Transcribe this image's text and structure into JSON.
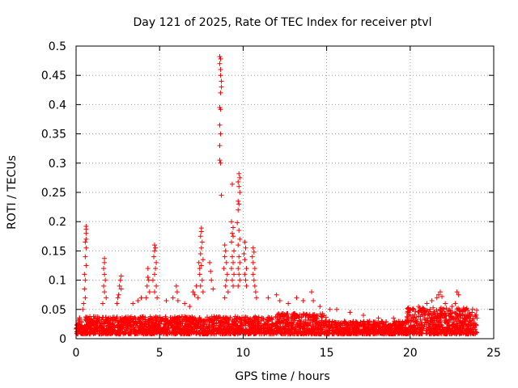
{
  "chart_data": {
    "type": "scatter",
    "title": "Day 121 of 2025, Rate Of TEC Index for receiver ptvl",
    "xlabel": "GPS time / hours",
    "ylabel": "ROTI / TECUs",
    "xlim": [
      0,
      25
    ],
    "ylim": [
      0,
      0.5
    ],
    "x_ticks": [
      "0",
      "5",
      "10",
      "15",
      "20",
      "25"
    ],
    "y_ticks": [
      "0",
      "0.05",
      "0.1",
      "0.15",
      "0.2",
      "0.25",
      "0.3",
      "0.35",
      "0.4",
      "0.45",
      "0.5"
    ],
    "grid": true,
    "marker": "+",
    "series": [
      {
        "name": "ROTI",
        "color": "#ff0000",
        "points": [
          [
            0.6,
            0.192
          ],
          [
            0.6,
            0.187
          ],
          [
            0.6,
            0.18
          ],
          [
            0.6,
            0.17
          ],
          [
            0.55,
            0.165
          ],
          [
            0.6,
            0.155
          ],
          [
            0.55,
            0.14
          ],
          [
            0.6,
            0.125
          ],
          [
            0.5,
            0.11
          ],
          [
            0.55,
            0.1
          ],
          [
            0.5,
            0.085
          ],
          [
            0.55,
            0.07
          ],
          [
            0.45,
            0.06
          ],
          [
            0.4,
            0.05
          ],
          [
            1.7,
            0.137
          ],
          [
            1.7,
            0.13
          ],
          [
            1.65,
            0.12
          ],
          [
            1.7,
            0.11
          ],
          [
            1.75,
            0.1
          ],
          [
            1.65,
            0.09
          ],
          [
            1.7,
            0.08
          ],
          [
            1.8,
            0.07
          ],
          [
            1.6,
            0.06
          ],
          [
            2.7,
            0.107
          ],
          [
            2.65,
            0.1
          ],
          [
            2.6,
            0.09
          ],
          [
            2.7,
            0.085
          ],
          [
            2.55,
            0.075
          ],
          [
            2.5,
            0.07
          ],
          [
            2.45,
            0.06
          ],
          [
            3.4,
            0.06
          ],
          [
            3.7,
            0.065
          ],
          [
            3.9,
            0.07
          ],
          [
            4.3,
            0.12
          ],
          [
            4.3,
            0.105
          ],
          [
            4.35,
            0.1
          ],
          [
            4.25,
            0.09
          ],
          [
            4.4,
            0.08
          ],
          [
            4.2,
            0.07
          ],
          [
            4.7,
            0.16
          ],
          [
            4.75,
            0.155
          ],
          [
            4.7,
            0.15
          ],
          [
            4.65,
            0.14
          ],
          [
            4.8,
            0.13
          ],
          [
            4.75,
            0.12
          ],
          [
            4.7,
            0.11
          ],
          [
            4.6,
            0.1
          ],
          [
            4.8,
            0.09
          ],
          [
            4.7,
            0.08
          ],
          [
            4.85,
            0.07
          ],
          [
            5.4,
            0.065
          ],
          [
            5.8,
            0.07
          ],
          [
            6.0,
            0.09
          ],
          [
            6.05,
            0.08
          ],
          [
            6.1,
            0.065
          ],
          [
            6.5,
            0.06
          ],
          [
            6.8,
            0.055
          ],
          [
            7.0,
            0.08
          ],
          [
            7.1,
            0.075
          ],
          [
            7.2,
            0.09
          ],
          [
            7.35,
            0.13
          ],
          [
            7.4,
            0.12
          ],
          [
            7.5,
            0.189
          ],
          [
            7.5,
            0.183
          ],
          [
            7.45,
            0.175
          ],
          [
            7.55,
            0.165
          ],
          [
            7.5,
            0.155
          ],
          [
            7.45,
            0.145
          ],
          [
            7.6,
            0.135
          ],
          [
            7.5,
            0.125
          ],
          [
            7.4,
            0.11
          ],
          [
            7.55,
            0.1
          ],
          [
            7.45,
            0.09
          ],
          [
            7.6,
            0.08
          ],
          [
            7.3,
            0.07
          ],
          [
            8.0,
            0.13
          ],
          [
            8.05,
            0.115
          ],
          [
            8.1,
            0.1
          ],
          [
            8.2,
            0.085
          ],
          [
            8.6,
            0.482
          ],
          [
            8.65,
            0.478
          ],
          [
            8.6,
            0.47
          ],
          [
            8.65,
            0.46
          ],
          [
            8.65,
            0.45
          ],
          [
            8.7,
            0.44
          ],
          [
            8.7,
            0.43
          ],
          [
            8.65,
            0.42
          ],
          [
            8.6,
            0.395
          ],
          [
            8.65,
            0.392
          ],
          [
            8.6,
            0.365
          ],
          [
            8.65,
            0.35
          ],
          [
            8.6,
            0.33
          ],
          [
            8.6,
            0.305
          ],
          [
            8.65,
            0.3
          ],
          [
            8.7,
            0.245
          ],
          [
            8.9,
            0.16
          ],
          [
            8.95,
            0.15
          ],
          [
            8.9,
            0.14
          ],
          [
            9.0,
            0.13
          ],
          [
            8.85,
            0.12
          ],
          [
            9.05,
            0.11
          ],
          [
            9.0,
            0.1
          ],
          [
            8.95,
            0.09
          ],
          [
            9.1,
            0.08
          ],
          [
            8.9,
            0.07
          ],
          [
            9.35,
            0.264
          ],
          [
            9.3,
            0.2
          ],
          [
            9.4,
            0.19
          ],
          [
            9.35,
            0.18
          ],
          [
            9.4,
            0.175
          ],
          [
            9.3,
            0.165
          ],
          [
            9.45,
            0.15
          ],
          [
            9.35,
            0.14
          ],
          [
            9.4,
            0.13
          ],
          [
            9.3,
            0.12
          ],
          [
            9.45,
            0.11
          ],
          [
            9.35,
            0.1
          ],
          [
            9.4,
            0.09
          ],
          [
            9.75,
            0.282
          ],
          [
            9.8,
            0.275
          ],
          [
            9.7,
            0.268
          ],
          [
            9.75,
            0.26
          ],
          [
            9.8,
            0.25
          ],
          [
            9.7,
            0.235
          ],
          [
            9.75,
            0.23
          ],
          [
            9.7,
            0.22
          ],
          [
            9.65,
            0.198
          ],
          [
            9.75,
            0.185
          ],
          [
            9.8,
            0.17
          ],
          [
            9.7,
            0.16
          ],
          [
            9.75,
            0.14
          ],
          [
            9.8,
            0.13
          ],
          [
            9.7,
            0.12
          ],
          [
            9.75,
            0.11
          ],
          [
            9.8,
            0.1
          ],
          [
            9.7,
            0.09
          ],
          [
            10.1,
            0.165
          ],
          [
            10.15,
            0.155
          ],
          [
            10.05,
            0.145
          ],
          [
            10.1,
            0.135
          ],
          [
            10.2,
            0.12
          ],
          [
            10.1,
            0.11
          ],
          [
            10.15,
            0.1
          ],
          [
            10.2,
            0.09
          ],
          [
            10.6,
            0.155
          ],
          [
            10.65,
            0.148
          ],
          [
            10.55,
            0.14
          ],
          [
            10.6,
            0.13
          ],
          [
            10.7,
            0.12
          ],
          [
            10.6,
            0.11
          ],
          [
            10.65,
            0.1
          ],
          [
            10.7,
            0.09
          ],
          [
            10.75,
            0.08
          ],
          [
            10.8,
            0.07
          ],
          [
            11.5,
            0.07
          ],
          [
            12.0,
            0.075
          ],
          [
            12.2,
            0.065
          ],
          [
            12.7,
            0.06
          ],
          [
            13.2,
            0.07
          ],
          [
            13.6,
            0.065
          ],
          [
            14.1,
            0.08
          ],
          [
            14.2,
            0.065
          ],
          [
            14.6,
            0.055
          ],
          [
            15.2,
            0.05
          ],
          [
            15.6,
            0.05
          ],
          [
            16.4,
            0.045
          ],
          [
            17.2,
            0.04
          ],
          [
            18.1,
            0.035
          ],
          [
            19.0,
            0.035
          ],
          [
            19.9,
            0.053
          ],
          [
            20.2,
            0.05
          ],
          [
            20.5,
            0.055
          ],
          [
            21.0,
            0.06
          ],
          [
            21.3,
            0.065
          ],
          [
            21.6,
            0.07
          ],
          [
            21.7,
            0.075
          ],
          [
            21.8,
            0.08
          ],
          [
            21.9,
            0.072
          ],
          [
            22.1,
            0.06
          ],
          [
            22.5,
            0.055
          ],
          [
            22.7,
            0.06
          ],
          [
            22.8,
            0.08
          ],
          [
            22.9,
            0.075
          ],
          [
            23.2,
            0.05
          ],
          [
            23.6,
            0.04
          ],
          [
            24.0,
            0.035
          ]
        ]
      }
    ]
  }
}
